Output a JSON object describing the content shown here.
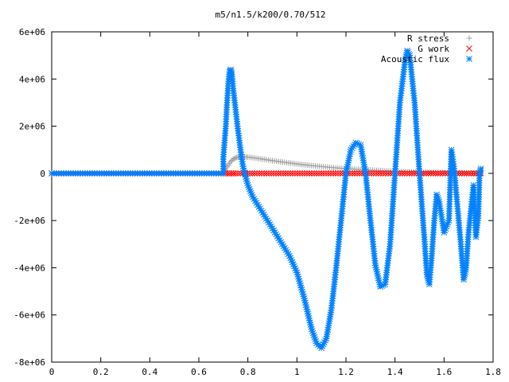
{
  "chart_data": {
    "type": "scatter",
    "title": "m5/n1.5/k200/0.70/512",
    "xlabel": "",
    "ylabel": "",
    "xlim": [
      0,
      1.8
    ],
    "ylim": [
      -8000000,
      6000000
    ],
    "x_ticks": [
      0,
      0.2,
      0.4,
      0.6,
      0.8,
      1,
      1.2,
      1.4,
      1.6,
      1.8
    ],
    "x_tick_labels": [
      "0",
      "0.2",
      "0.4",
      "0.6",
      "0.8",
      "1",
      "1.2",
      "1.4",
      "1.6",
      "1.8"
    ],
    "y_ticks": [
      -8000000,
      -6000000,
      -4000000,
      -2000000,
      0,
      2000000,
      4000000,
      6000000
    ],
    "y_tick_labels": [
      "-8e+06",
      "-6e+06",
      "-4e+06",
      "-2e+06",
      "0",
      "2e+06",
      "4e+06",
      "6e+06"
    ],
    "grid": false,
    "legend_position": "top-right",
    "series": [
      {
        "name": "R stress",
        "marker": "plus",
        "color": "#a0a0a0",
        "points": [
          [
            0,
            0
          ],
          [
            0.7,
            0
          ],
          [
            0.71,
            200000
          ],
          [
            0.72,
            350000
          ],
          [
            0.73,
            500000
          ],
          [
            0.74,
            600000
          ],
          [
            0.75,
            660000
          ],
          [
            0.76,
            690000
          ],
          [
            0.77,
            700000
          ],
          [
            0.78,
            700000
          ],
          [
            0.8,
            690000
          ],
          [
            0.85,
            620000
          ],
          [
            0.9,
            540000
          ],
          [
            0.95,
            470000
          ],
          [
            1.0,
            400000
          ],
          [
            1.05,
            340000
          ],
          [
            1.1,
            290000
          ],
          [
            1.15,
            240000
          ],
          [
            1.2,
            200000
          ],
          [
            1.25,
            170000
          ],
          [
            1.3,
            140000
          ],
          [
            1.35,
            110000
          ],
          [
            1.4,
            90000
          ],
          [
            1.45,
            70000
          ],
          [
            1.5,
            55000
          ],
          [
            1.55,
            40000
          ],
          [
            1.6,
            30000
          ],
          [
            1.65,
            20000
          ],
          [
            1.7,
            10000
          ],
          [
            1.75,
            0
          ]
        ]
      },
      {
        "name": "G work",
        "marker": "cross",
        "color": "#ff0000",
        "points": [
          [
            0,
            0
          ],
          [
            0.7,
            0
          ],
          [
            0.75,
            0
          ],
          [
            1.75,
            0
          ]
        ]
      },
      {
        "name": "Acoustic flux",
        "marker": "star",
        "color": "#0080ff",
        "points": [
          [
            0,
            0
          ],
          [
            0.7,
            0
          ],
          [
            0.7,
            700000
          ],
          [
            0.71,
            2000000
          ],
          [
            0.715,
            3000000
          ],
          [
            0.72,
            3800000
          ],
          [
            0.725,
            4300000
          ],
          [
            0.73,
            4400000
          ],
          [
            0.735,
            4200000
          ],
          [
            0.74,
            3600000
          ],
          [
            0.75,
            2700000
          ],
          [
            0.76,
            1800000
          ],
          [
            0.77,
            1000000
          ],
          [
            0.78,
            300000
          ],
          [
            0.8,
            -500000
          ],
          [
            0.82,
            -1000000
          ],
          [
            0.85,
            -1500000
          ],
          [
            0.88,
            -2000000
          ],
          [
            0.91,
            -2500000
          ],
          [
            0.94,
            -3000000
          ],
          [
            0.97,
            -3500000
          ],
          [
            1.0,
            -4200000
          ],
          [
            1.03,
            -5300000
          ],
          [
            1.06,
            -6600000
          ],
          [
            1.08,
            -7200000
          ],
          [
            1.1,
            -7400000
          ],
          [
            1.12,
            -7000000
          ],
          [
            1.14,
            -5800000
          ],
          [
            1.16,
            -4000000
          ],
          [
            1.18,
            -2000000
          ],
          [
            1.2,
            0
          ],
          [
            1.22,
            1000000
          ],
          [
            1.24,
            1300000
          ],
          [
            1.26,
            1200000
          ],
          [
            1.28,
            0
          ],
          [
            1.3,
            -2000000
          ],
          [
            1.32,
            -3900000
          ],
          [
            1.34,
            -4800000
          ],
          [
            1.36,
            -4700000
          ],
          [
            1.38,
            -3000000
          ],
          [
            1.4,
            0
          ],
          [
            1.42,
            3000000
          ],
          [
            1.44,
            4700000
          ],
          [
            1.45,
            5200000
          ],
          [
            1.46,
            5000000
          ],
          [
            1.48,
            3000000
          ],
          [
            1.5,
            0
          ],
          [
            1.52,
            -2800000
          ],
          [
            1.53,
            -4300000
          ],
          [
            1.54,
            -4700000
          ],
          [
            1.55,
            -3500000
          ],
          [
            1.56,
            -2000000
          ],
          [
            1.57,
            -900000
          ],
          [
            1.58,
            -1200000
          ],
          [
            1.6,
            -2500000
          ],
          [
            1.62,
            -2000000
          ],
          [
            1.63,
            1000000
          ],
          [
            1.64,
            300000
          ],
          [
            1.66,
            -2000000
          ],
          [
            1.67,
            -3200000
          ],
          [
            1.68,
            -4500000
          ],
          [
            1.69,
            -4000000
          ],
          [
            1.7,
            -2500000
          ],
          [
            1.71,
            -1500000
          ],
          [
            1.72,
            -500000
          ],
          [
            1.73,
            -2700000
          ],
          [
            1.74,
            -1800000
          ],
          [
            1.745,
            0
          ],
          [
            1.75,
            200000
          ]
        ]
      }
    ]
  }
}
